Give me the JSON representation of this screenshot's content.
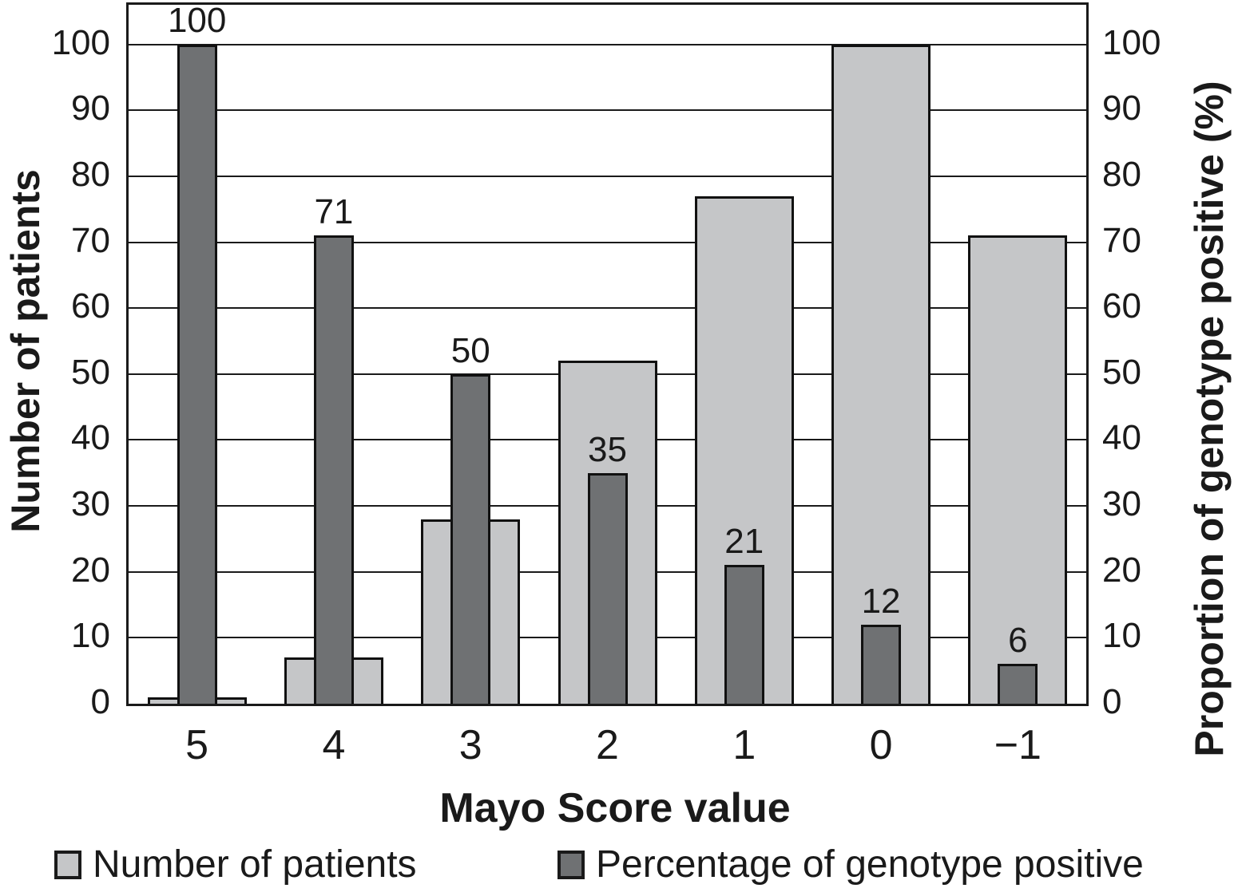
{
  "figure": {
    "x_axis": {
      "title": "Mayo Score value",
      "tick_labels": [
        "5",
        "4",
        "3",
        "2",
        "1",
        "0",
        "−1"
      ]
    },
    "y_axis_left": {
      "title": "Number of patients",
      "tick_labels": [
        "0",
        "10",
        "20",
        "30",
        "40",
        "50",
        "60",
        "70",
        "80",
        "90",
        "100"
      ]
    },
    "y_axis_right": {
      "title": "Proportion of genotype positive (%)",
      "tick_labels": [
        "0",
        "10",
        "20",
        "30",
        "40",
        "50",
        "60",
        "70",
        "80",
        "90",
        "100"
      ]
    },
    "legend": {
      "items": [
        {
          "label": "Number of patients",
          "color": "#c5c6c8"
        },
        {
          "label": "Percentage of genotype positive",
          "color": "#6f7173"
        }
      ]
    },
    "colors": {
      "light_bar": "#c5c6c8",
      "dark_bar": "#6f7173",
      "line": "#1a1a1a",
      "background": "#ffffff"
    }
  },
  "chart_data": {
    "type": "bar",
    "categories": [
      "5",
      "4",
      "3",
      "2",
      "1",
      "0",
      "−1"
    ],
    "series": [
      {
        "name": "Number of patients",
        "axis": "left",
        "color": "#c5c6c8",
        "values": [
          1,
          7,
          28,
          52,
          77,
          100,
          71
        ]
      },
      {
        "name": "Percentage of genotype positive",
        "axis": "right",
        "color": "#6f7173",
        "values": [
          100,
          71,
          50,
          35,
          21,
          12,
          6
        ],
        "data_labels": [
          "100",
          "71",
          "50",
          "35",
          "21",
          "12",
          "6"
        ]
      }
    ],
    "title": "",
    "xlabel": "Mayo Score value",
    "ylabel_left": "Number of patients",
    "ylabel_right": "Proportion of genotype positive (%)",
    "yticks": [
      0,
      10,
      20,
      30,
      40,
      50,
      60,
      70,
      80,
      90,
      100
    ],
    "ylim": [
      0,
      106
    ],
    "grid": "horizontal",
    "legend_position": "bottom",
    "bar_style": "wide light bars (Number of patients) with narrow dark bars (Percentage of genotype positive) overlaid and centered"
  }
}
